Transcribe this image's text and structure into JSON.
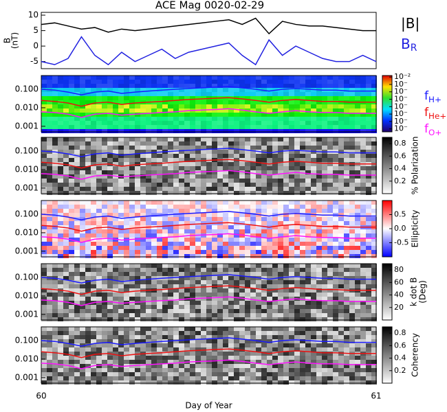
{
  "chart_data": [
    {
      "type": "line",
      "title": "ACE Mag 0020-02-29",
      "ylabel_lines": [
        "B",
        "(nT)"
      ],
      "x": [
        60.0,
        60.04,
        60.08,
        60.12,
        60.16,
        60.2,
        60.24,
        60.28,
        60.32,
        60.36,
        60.4,
        60.44,
        60.48,
        60.52,
        60.56,
        60.6,
        60.64,
        60.68,
        60.72,
        60.76,
        60.8,
        60.84,
        60.88,
        60.92,
        60.96,
        61.0
      ],
      "series": [
        {
          "name": "|B|",
          "color": "#000000",
          "values": [
            7,
            7.5,
            6.5,
            5.5,
            6,
            4.5,
            5.5,
            5,
            5.5,
            6,
            6.5,
            7,
            7.5,
            8,
            8.5,
            7,
            9,
            4,
            8,
            7,
            6.5,
            6.5,
            6,
            5.5,
            5,
            5
          ]
        },
        {
          "name": "B",
          "sub": "R",
          "color": "#2020e0",
          "values": [
            -5,
            -6,
            -4,
            3,
            -3,
            -6,
            -2,
            -5,
            -3,
            -1,
            -4,
            -2,
            -1,
            0,
            1,
            -3,
            -6,
            2,
            -3,
            0,
            -2,
            -4,
            -5,
            -5,
            -3,
            -5
          ]
        }
      ],
      "xlim": [
        60,
        61
      ],
      "ylim": [
        -7.3,
        10.9
      ],
      "yticks": [
        -5,
        0,
        5,
        10
      ]
    },
    {
      "type": "spectrogram",
      "xlabel": "Day of Year",
      "xlim": [
        60,
        61
      ],
      "xticks": [
        60,
        61
      ],
      "log_y": true,
      "ylim": [
        0.0005,
        0.55
      ],
      "yticks": [
        {
          "value": 0.1,
          "label": "0.100"
        },
        {
          "value": 0.01,
          "label": "0.010"
        },
        {
          "value": 0.001,
          "label": "0.001"
        }
      ],
      "x": [
        60.0,
        60.04,
        60.08,
        60.12,
        60.16,
        60.2,
        60.24,
        60.28,
        60.32,
        60.36,
        60.4,
        60.44,
        60.48,
        60.52,
        60.56,
        60.6,
        60.64,
        60.68,
        60.72,
        60.76,
        60.8,
        60.84,
        60.88,
        60.92,
        60.96,
        61.0
      ],
      "series": [
        {
          "name": "f",
          "sub": "H+",
          "color": "#1a1aff",
          "values": [
            0.1,
            0.09,
            0.07,
            0.05,
            0.07,
            0.08,
            0.06,
            0.07,
            0.08,
            0.09,
            0.1,
            0.11,
            0.12,
            0.13,
            0.14,
            0.12,
            0.1,
            0.08,
            0.1,
            0.11,
            0.1,
            0.09,
            0.09,
            0.08,
            0.08,
            0.08
          ]
        },
        {
          "name": "f",
          "sub": "He+",
          "color": "#ee1010",
          "values": [
            0.025,
            0.022,
            0.018,
            0.012,
            0.018,
            0.02,
            0.015,
            0.018,
            0.02,
            0.022,
            0.025,
            0.028,
            0.03,
            0.033,
            0.035,
            0.03,
            0.025,
            0.02,
            0.025,
            0.028,
            0.025,
            0.022,
            0.022,
            0.02,
            0.02,
            0.02
          ]
        },
        {
          "name": "f",
          "sub": "O+",
          "color": "#ff10ff",
          "values": [
            0.006,
            0.0055,
            0.0045,
            0.003,
            0.0045,
            0.005,
            0.004,
            0.0045,
            0.005,
            0.0055,
            0.006,
            0.007,
            0.0075,
            0.008,
            0.0088,
            0.0075,
            0.006,
            0.005,
            0.006,
            0.007,
            0.006,
            0.0055,
            0.0055,
            0.005,
            0.005,
            0.005
          ]
        }
      ],
      "panels": [
        {
          "style": "rainbow",
          "cbar_lim": [
            -9.4,
            -1.8
          ],
          "cbar_ticks": [
            {
              "value": -2,
              "label": "10⁻²"
            },
            {
              "value": -3,
              "label": "10⁻"
            },
            {
              "value": -4,
              "label": "10⁻"
            },
            {
              "value": -5,
              "label": "10⁻"
            },
            {
              "value": -6,
              "label": "10⁻"
            },
            {
              "value": -7,
              "label": "10⁻"
            },
            {
              "value": -8,
              "label": "10⁻"
            },
            {
              "value": -9,
              "label": "10⁻"
            }
          ]
        },
        {
          "style": "gray",
          "cbar_label": "% Polarization",
          "cbar_lim": [
            0,
            0.9
          ],
          "cbar_ticks": [
            0.2,
            0.4,
            0.6,
            0.8
          ]
        },
        {
          "style": "redblue",
          "cbar_label": "Ellipticity",
          "cbar_lim": [
            -1,
            1
          ],
          "cbar_ticks": [
            -0.5,
            {
              "value": 0,
              "label": "0.0"
            },
            0.5
          ]
        },
        {
          "style": "gray",
          "cbar_label_lines": [
            "k dot B",
            "(Deg)"
          ],
          "cbar_lim": [
            0,
            90
          ],
          "cbar_ticks": [
            20,
            40,
            60,
            80
          ]
        },
        {
          "style": "gray",
          "cbar_label": "Coherency",
          "cbar_lim": [
            0,
            0.9
          ],
          "cbar_ticks": [
            0.2,
            0.4,
            0.6,
            0.8
          ]
        }
      ]
    }
  ]
}
